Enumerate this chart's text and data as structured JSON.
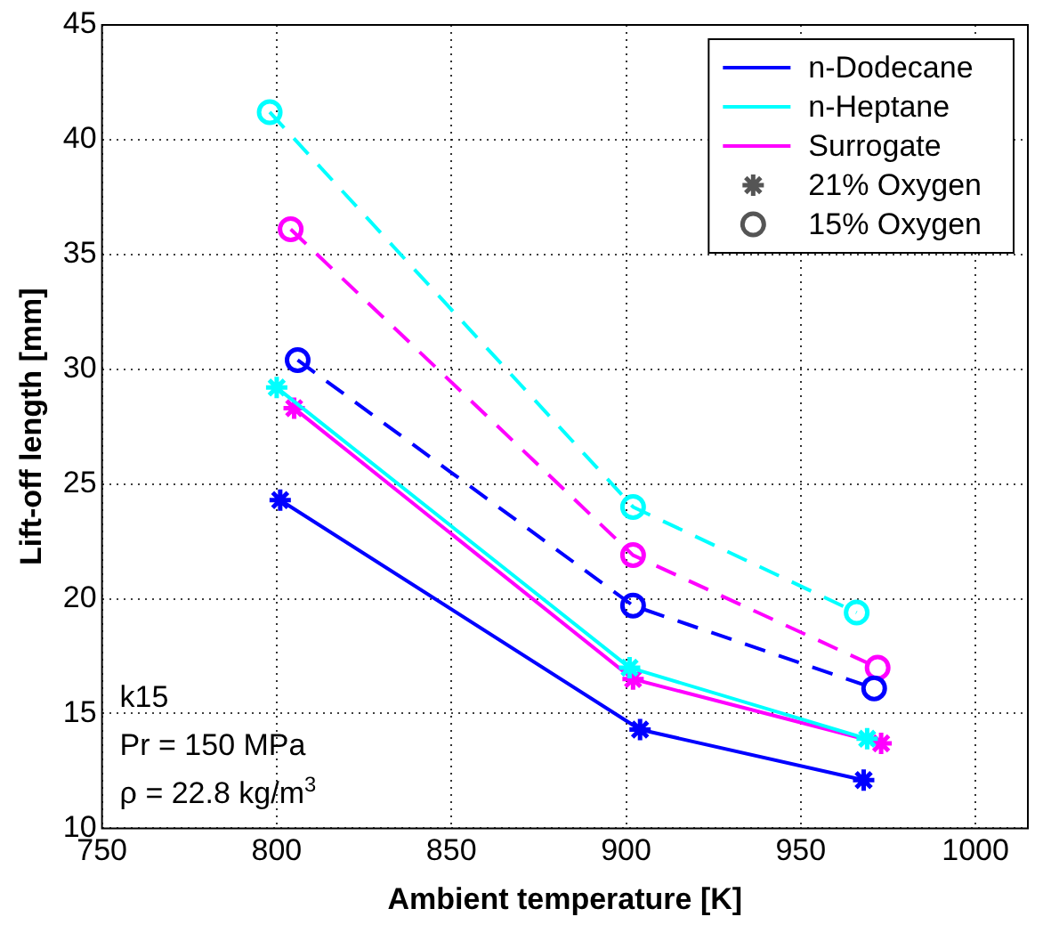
{
  "chart_data": {
    "type": "line",
    "xlabel": "Ambient temperature [K]",
    "ylabel": "Lift-off length [mm]",
    "xlim": [
      750,
      1015
    ],
    "xticks": [
      750,
      800,
      850,
      900,
      950,
      1000
    ],
    "ylim": [
      10,
      45
    ],
    "yticks": [
      10,
      15,
      20,
      25,
      30,
      35,
      40,
      45
    ],
    "grid": true,
    "legend": "top right",
    "annotations": [
      "k15",
      "Pr = 150 MPa",
      "ρ = 22.8 kg/m$^{3}$"
    ],
    "series": [
      {
        "name": "n-Dodecane",
        "color": "#0000ff",
        "x": [
          801,
          904,
          968
        ],
        "values": [
          24.3,
          14.3,
          12.1
        ],
        "marker": "cross",
        "line_style": "solid"
      },
      {
        "name": "n-Heptane",
        "color": "#00ffff",
        "x": [
          800,
          901,
          969
        ],
        "values": [
          29.2,
          17.0,
          13.9
        ],
        "marker": "cross",
        "line_style": "solid"
      },
      {
        "name": "Surrogate",
        "color": "#ff00ff",
        "x": [
          805,
          902,
          973
        ],
        "values": [
          28.3,
          16.5,
          13.7
        ],
        "marker": "cross",
        "line_style": "solid"
      },
      {
        "color": "#0000ff",
        "x": [
          806,
          902,
          971
        ],
        "values": [
          30.4,
          19.7,
          16.1
        ],
        "marker": "circle",
        "line_style": "dashed"
      },
      {
        "color": "#00ffff",
        "x": [
          798,
          902,
          966
        ],
        "values": [
          41.2,
          24.0,
          19.4
        ],
        "marker": "circle",
        "line_style": "dashed"
      },
      {
        "color": "#ff00ff",
        "x": [
          804,
          902,
          972
        ],
        "values": [
          36.1,
          21.9,
          17.0
        ],
        "marker": "circle",
        "line_style": "dashed"
      },
      {
        "name": "21% Oxygen",
        "color": "#555555",
        "type": "scatter",
        "marker": "cross"
      },
      {
        "name": "15% Oxygen",
        "color": "#555555",
        "type": "scatter",
        "marker": "circle"
      }
    ]
  }
}
